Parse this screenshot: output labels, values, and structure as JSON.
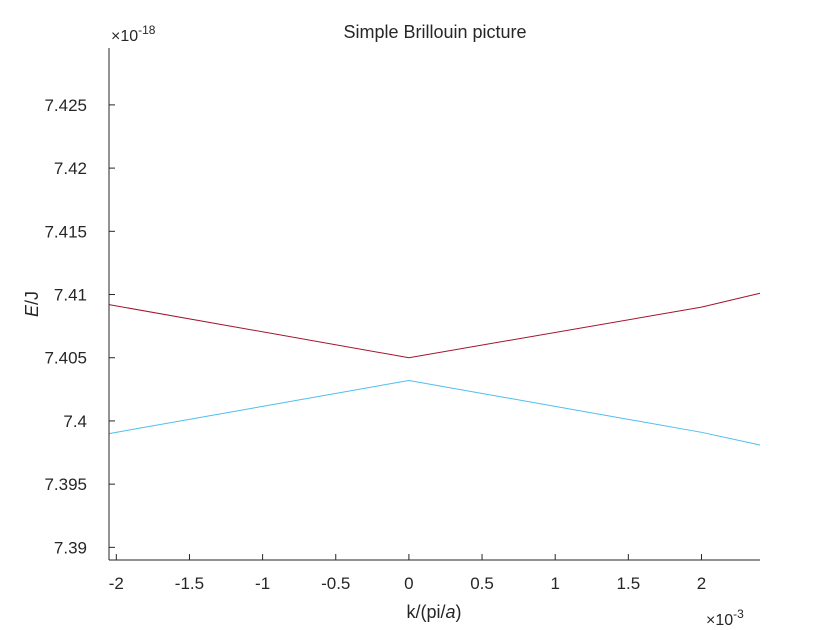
{
  "chart_data": {
    "type": "line",
    "title": "Simple Brillouin picture",
    "xlabel": {
      "main": "k/(pi/",
      "italic": "a",
      "end": ")"
    },
    "ylabel": {
      "italic": "E",
      "rest": "/J"
    },
    "x_exponent": {
      "prefix": "×10",
      "power": "-3"
    },
    "y_exponent": {
      "prefix": "×10",
      "power": "-18"
    },
    "xlim": [
      -2.05,
      2.4
    ],
    "ylim": [
      7.389,
      7.4295
    ],
    "x_ticks": [
      -2,
      -1.5,
      -1,
      -0.5,
      0,
      0.5,
      1,
      1.5,
      2
    ],
    "x_tick_labels": [
      "-2",
      "-1.5",
      "-1",
      "-0.5",
      "0",
      "0.5",
      "1",
      "1.5",
      "2"
    ],
    "y_ticks": [
      7.39,
      7.395,
      7.4,
      7.405,
      7.41,
      7.415,
      7.42,
      7.425
    ],
    "y_tick_labels": [
      "7.39",
      "7.395",
      "7.4",
      "7.405",
      "7.41",
      "7.415",
      "7.42",
      "7.425"
    ],
    "grid": false,
    "series": [
      {
        "color": "#A2142F",
        "x": [
          -2.05,
          0,
          2,
          2.4
        ],
        "y": [
          7.4092,
          7.405,
          7.409,
          7.4101
        ]
      },
      {
        "color": "#4DBEEE",
        "x": [
          -2.05,
          0,
          2,
          2.4
        ],
        "y": [
          7.399,
          7.4032,
          7.3991,
          7.3981
        ]
      }
    ]
  }
}
